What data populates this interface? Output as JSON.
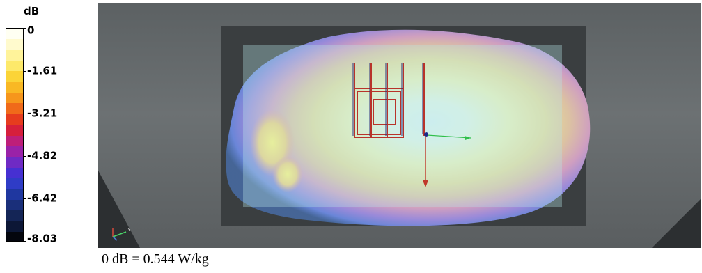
{
  "legend": {
    "unit": "dB",
    "ticks": [
      "0",
      "-1.61",
      "-3.21",
      "-4.82",
      "-6.42",
      "-8.03"
    ],
    "tick_values": [
      0,
      -1.61,
      -3.21,
      -4.82,
      -6.42,
      -8.03
    ],
    "swatches": [
      "#fffff2",
      "#fffacd",
      "#fff39a",
      "#fde96a",
      "#fbd437",
      "#f9b824",
      "#f6961c",
      "#f06a1a",
      "#e63c1e",
      "#d61f3c",
      "#be1f79",
      "#9a22a8",
      "#6f2ac4",
      "#4630d2",
      "#2f3cc6",
      "#1f37a0",
      "#1a2f7a",
      "#142556",
      "#0c1736",
      "#04060e"
    ]
  },
  "viewport": {
    "background": "#44484a",
    "orientation_axes": {
      "y_label": "Y"
    }
  },
  "caption": "0 dB = 0.544 W/kg"
}
